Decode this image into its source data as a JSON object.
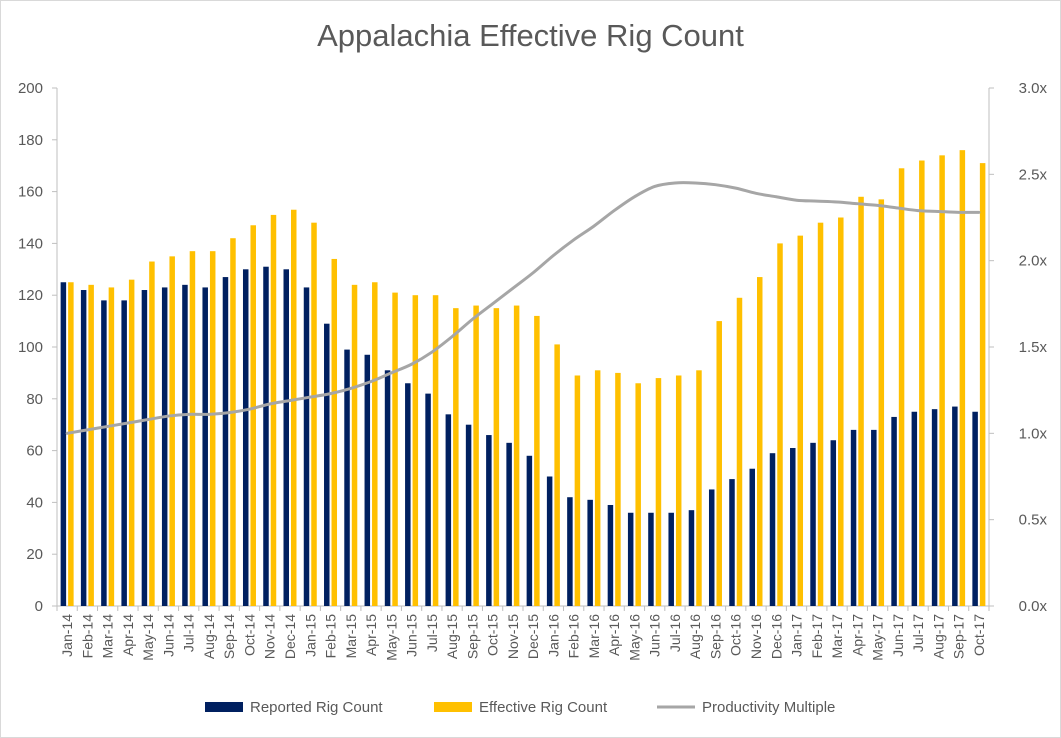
{
  "chart_data": {
    "type": "bar",
    "title": "Appalachia Effective Rig Count",
    "xlabel": "",
    "ylabel": "",
    "y2label": "",
    "ylim": [
      0,
      200
    ],
    "y2lim": [
      0,
      3.0
    ],
    "yticks": [
      "0",
      "20",
      "40",
      "60",
      "80",
      "100",
      "120",
      "140",
      "160",
      "180",
      "200"
    ],
    "y2ticks": [
      "0.0x",
      "0.5x",
      "1.0x",
      "1.5x",
      "2.0x",
      "2.5x",
      "3.0x"
    ],
    "grid": false,
    "legend_position": "bottom",
    "categories": [
      "Jan-14",
      "Feb-14",
      "Mar-14",
      "Apr-14",
      "May-14",
      "Jun-14",
      "Jul-14",
      "Aug-14",
      "Sep-14",
      "Oct-14",
      "Nov-14",
      "Dec-14",
      "Jan-15",
      "Feb-15",
      "Mar-15",
      "Apr-15",
      "May-15",
      "Jun-15",
      "Jul-15",
      "Aug-15",
      "Sep-15",
      "Oct-15",
      "Nov-15",
      "Dec-15",
      "Jan-16",
      "Feb-16",
      "Mar-16",
      "Apr-16",
      "May-16",
      "Jun-16",
      "Jul-16",
      "Aug-16",
      "Sep-16",
      "Oct-16",
      "Nov-16",
      "Dec-16",
      "Jan-17",
      "Feb-17",
      "Mar-17",
      "Apr-17",
      "May-17",
      "Jun-17",
      "Jul-17",
      "Aug-17",
      "Sep-17",
      "Oct-17"
    ],
    "series": [
      {
        "name": "Reported Rig Count",
        "type": "bar",
        "axis": "left",
        "color": "#002060",
        "values": [
          125,
          122,
          118,
          118,
          122,
          123,
          124,
          123,
          127,
          130,
          131,
          130,
          123,
          109,
          99,
          97,
          91,
          86,
          82,
          74,
          70,
          66,
          63,
          58,
          50,
          42,
          41,
          39,
          36,
          36,
          36,
          37,
          45,
          49,
          53,
          59,
          61,
          63,
          64,
          68,
          68,
          73,
          75,
          76,
          77,
          75
        ]
      },
      {
        "name": "Effective Rig Count",
        "type": "bar",
        "axis": "left",
        "color": "#ffc000",
        "values": [
          125,
          124,
          123,
          126,
          133,
          135,
          137,
          137,
          142,
          147,
          151,
          153,
          148,
          134,
          124,
          125,
          121,
          120,
          120,
          115,
          116,
          115,
          116,
          112,
          101,
          89,
          91,
          90,
          86,
          88,
          89,
          91,
          110,
          119,
          127,
          140,
          143,
          148,
          150,
          158,
          157,
          169,
          172,
          174,
          176,
          171
        ]
      },
      {
        "name": "Productivity Multiple",
        "type": "line",
        "axis": "right",
        "color": "#a6a6a6",
        "values": [
          1.0,
          1.02,
          1.04,
          1.06,
          1.08,
          1.1,
          1.11,
          1.11,
          1.12,
          1.14,
          1.17,
          1.19,
          1.21,
          1.23,
          1.26,
          1.3,
          1.35,
          1.4,
          1.47,
          1.56,
          1.66,
          1.75,
          1.84,
          1.93,
          2.03,
          2.12,
          2.2,
          2.29,
          2.37,
          2.43,
          2.45,
          2.45,
          2.44,
          2.42,
          2.39,
          2.37,
          2.35,
          2.345,
          2.34,
          2.33,
          2.32,
          2.305,
          2.29,
          2.285,
          2.28,
          2.28
        ]
      }
    ]
  }
}
